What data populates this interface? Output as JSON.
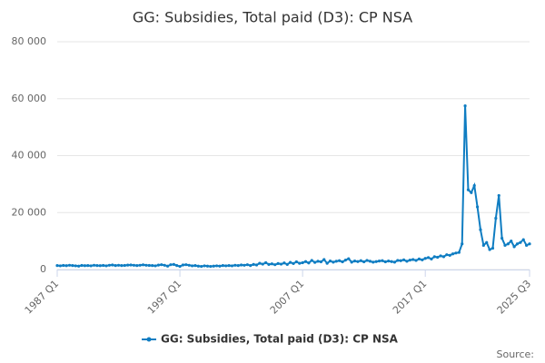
{
  "chart_data": {
    "type": "line",
    "title": "GG: Subsidies, Total paid (D3): CP NSA",
    "source_label": "Source:",
    "categories": [
      "1987 Q1",
      null,
      null,
      null,
      null,
      null,
      null,
      null,
      null,
      null,
      null,
      null,
      null,
      null,
      null,
      null,
      null,
      null,
      null,
      null,
      null,
      null,
      null,
      null,
      null,
      null,
      null,
      null,
      null,
      null,
      null,
      null,
      null,
      null,
      null,
      null,
      null,
      null,
      null,
      null,
      "1997 Q1",
      null,
      null,
      null,
      null,
      null,
      null,
      null,
      null,
      null,
      null,
      null,
      null,
      null,
      null,
      null,
      null,
      null,
      null,
      null,
      null,
      null,
      null,
      null,
      null,
      null,
      null,
      null,
      null,
      null,
      null,
      null,
      null,
      null,
      null,
      null,
      null,
      null,
      null,
      null,
      "2007 Q1",
      null,
      null,
      null,
      null,
      null,
      null,
      null,
      null,
      null,
      null,
      null,
      null,
      null,
      null,
      null,
      null,
      null,
      null,
      null,
      null,
      null,
      null,
      null,
      null,
      null,
      null,
      null,
      null,
      null,
      null,
      null,
      null,
      null,
      null,
      null,
      null,
      null,
      null,
      null,
      "2017 Q1",
      null,
      null,
      null,
      null,
      null,
      null,
      null,
      null,
      null,
      null,
      null,
      null,
      null,
      null,
      null,
      null,
      null,
      null,
      null,
      null,
      null,
      null,
      null,
      null,
      null,
      null,
      null,
      null,
      null,
      null,
      null,
      null,
      null,
      "2025 Q3"
    ],
    "series": [
      {
        "name": "GG: Subsidies, Total paid (D3): CP NSA",
        "color": "#0f7dc2",
        "values": [
          1400,
          1300,
          1450,
          1350,
          1500,
          1400,
          1300,
          1200,
          1450,
          1350,
          1400,
          1300,
          1500,
          1400,
          1350,
          1450,
          1300,
          1500,
          1600,
          1400,
          1500,
          1400,
          1450,
          1550,
          1600,
          1500,
          1400,
          1500,
          1650,
          1500,
          1450,
          1400,
          1300,
          1550,
          1700,
          1500,
          1200,
          1700,
          1800,
          1400,
          1100,
          1600,
          1700,
          1500,
          1300,
          1400,
          1200,
          1100,
          1300,
          1200,
          1100,
          1200,
          1300,
          1200,
          1400,
          1300,
          1400,
          1300,
          1500,
          1400,
          1600,
          1500,
          1700,
          1400,
          1800,
          1600,
          2200,
          1900,
          2400,
          1800,
          2000,
          1700,
          2100,
          1900,
          2300,
          1800,
          2500,
          2100,
          2700,
          2200,
          2400,
          2800,
          2300,
          3200,
          2500,
          2900,
          2700,
          3500,
          2200,
          3000,
          2600,
          2900,
          3100,
          2700,
          3300,
          3800,
          2600,
          3000,
          2800,
          3100,
          2700,
          3200,
          2900,
          2600,
          2800,
          3000,
          3100,
          2700,
          3000,
          2800,
          2600,
          3200,
          3100,
          3400,
          2900,
          3300,
          3500,
          3200,
          3700,
          3400,
          3900,
          4200,
          3700,
          4500,
          4300,
          4800,
          4500,
          5200,
          5000,
          5500,
          5800,
          6000,
          9000,
          57500,
          28000,
          27000,
          29500,
          22000,
          14000,
          8500,
          9500,
          7000,
          7500,
          18000,
          26000,
          11000,
          8500,
          9000,
          10000,
          8000,
          9000,
          9500,
          10500,
          8500,
          9000
        ]
      }
    ],
    "ylim": [
      0,
      80000
    ],
    "yticks": [
      0,
      {
        "value": 20000,
        "label": "20 000"
      },
      {
        "value": 40000,
        "label": "40 000"
      },
      {
        "value": 60000,
        "label": "60 000"
      },
      {
        "value": 80000,
        "label": "80 000"
      }
    ],
    "grid": true
  }
}
